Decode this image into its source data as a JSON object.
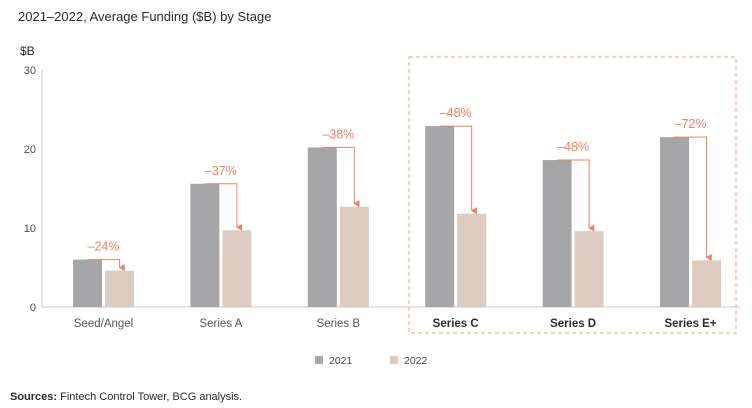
{
  "chart_data": {
    "type": "bar",
    "title": "2021–2022, Average Funding ($B) by Stage",
    "ylabel": "$B",
    "ylim": [
      0,
      30
    ],
    "yticks": [
      0,
      10,
      20,
      30
    ],
    "categories": [
      "Seed/Angel",
      "Series A",
      "Series B",
      "Series C",
      "Series D",
      "Series E+"
    ],
    "highlighted_categories": [
      "Series C",
      "Series D",
      "Series E+"
    ],
    "series": [
      {
        "name": "2021",
        "color": "#a6a6a9",
        "values": [
          6.0,
          15.6,
          20.2,
          22.9,
          18.6,
          21.5
        ]
      },
      {
        "name": "2022",
        "color": "#dbcbc0",
        "values": [
          4.6,
          9.7,
          12.7,
          11.8,
          9.6,
          5.9
        ]
      }
    ],
    "change_labels": [
      "–24%",
      "–37%",
      "–38%",
      "–48%",
      "–48%",
      "–72%"
    ],
    "annotation_color": "#f08060",
    "legend_position": "bottom",
    "grid": false,
    "source": "Sources: Fintech Control Tower, BCG analysis."
  }
}
